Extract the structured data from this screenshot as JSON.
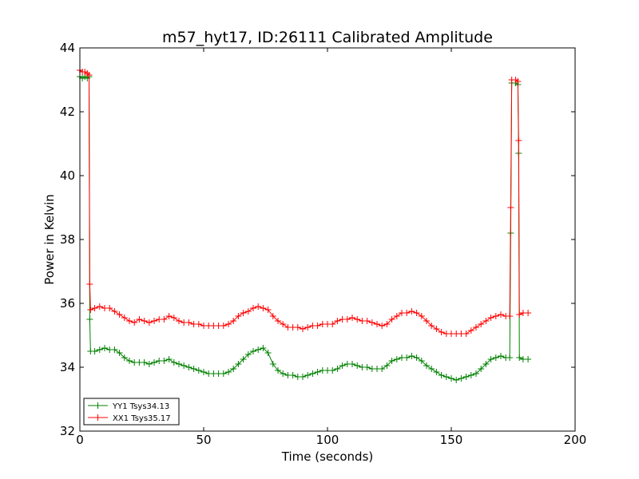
{
  "chart_data": {
    "type": "line",
    "title": "m57_hyt17, ID:26111 Calibrated Amplitude",
    "xlabel": "Time (seconds)",
    "ylabel": "Power in Kelvin",
    "xlim": [
      0,
      200
    ],
    "ylim": [
      32,
      44
    ],
    "xticks": [
      0,
      50,
      100,
      150,
      200
    ],
    "yticks": [
      32,
      34,
      36,
      38,
      40,
      42,
      44
    ],
    "grid": false,
    "legend_position": "lower-left",
    "marker": "+",
    "series": [
      {
        "name": "YY1 Tsys34.13",
        "color": "#008000",
        "points": [
          [
            0,
            43.1
          ],
          [
            1,
            43.05
          ],
          [
            2,
            43.1
          ],
          [
            3,
            43.05
          ],
          [
            3.7,
            43.1
          ],
          [
            4,
            35.5
          ],
          [
            4.3,
            34.5
          ],
          [
            6,
            34.5
          ],
          [
            8,
            34.55
          ],
          [
            10,
            34.6
          ],
          [
            12,
            34.55
          ],
          [
            14,
            34.55
          ],
          [
            16,
            34.45
          ],
          [
            18,
            34.3
          ],
          [
            20,
            34.2
          ],
          [
            22,
            34.15
          ],
          [
            24,
            34.15
          ],
          [
            26,
            34.15
          ],
          [
            28,
            34.1
          ],
          [
            30,
            34.15
          ],
          [
            32,
            34.2
          ],
          [
            34,
            34.2
          ],
          [
            36,
            34.25
          ],
          [
            38,
            34.15
          ],
          [
            40,
            34.1
          ],
          [
            42,
            34.05
          ],
          [
            44,
            34.0
          ],
          [
            46,
            33.95
          ],
          [
            48,
            33.9
          ],
          [
            50,
            33.85
          ],
          [
            52,
            33.8
          ],
          [
            54,
            33.8
          ],
          [
            56,
            33.8
          ],
          [
            58,
            33.8
          ],
          [
            60,
            33.85
          ],
          [
            62,
            33.95
          ],
          [
            64,
            34.1
          ],
          [
            66,
            34.25
          ],
          [
            68,
            34.4
          ],
          [
            70,
            34.5
          ],
          [
            72,
            34.55
          ],
          [
            74,
            34.6
          ],
          [
            76,
            34.45
          ],
          [
            78,
            34.1
          ],
          [
            80,
            33.9
          ],
          [
            82,
            33.8
          ],
          [
            84,
            33.75
          ],
          [
            86,
            33.75
          ],
          [
            88,
            33.7
          ],
          [
            90,
            33.7
          ],
          [
            92,
            33.75
          ],
          [
            94,
            33.8
          ],
          [
            96,
            33.85
          ],
          [
            98,
            33.9
          ],
          [
            100,
            33.9
          ],
          [
            102,
            33.9
          ],
          [
            104,
            33.95
          ],
          [
            106,
            34.05
          ],
          [
            108,
            34.1
          ],
          [
            110,
            34.1
          ],
          [
            112,
            34.05
          ],
          [
            114,
            34.0
          ],
          [
            116,
            34.0
          ],
          [
            118,
            33.95
          ],
          [
            120,
            33.95
          ],
          [
            122,
            33.95
          ],
          [
            124,
            34.05
          ],
          [
            126,
            34.2
          ],
          [
            128,
            34.25
          ],
          [
            130,
            34.3
          ],
          [
            132,
            34.3
          ],
          [
            134,
            34.35
          ],
          [
            136,
            34.3
          ],
          [
            138,
            34.2
          ],
          [
            140,
            34.05
          ],
          [
            142,
            33.95
          ],
          [
            144,
            33.85
          ],
          [
            146,
            33.75
          ],
          [
            148,
            33.7
          ],
          [
            150,
            33.65
          ],
          [
            152,
            33.6
          ],
          [
            154,
            33.65
          ],
          [
            156,
            33.7
          ],
          [
            158,
            33.75
          ],
          [
            160,
            33.8
          ],
          [
            162,
            33.95
          ],
          [
            164,
            34.1
          ],
          [
            166,
            34.25
          ],
          [
            168,
            34.3
          ],
          [
            170,
            34.35
          ],
          [
            172,
            34.3
          ],
          [
            173.6,
            34.3
          ],
          [
            174,
            38.2
          ],
          [
            174.4,
            42.9
          ],
          [
            176,
            42.9
          ],
          [
            176.9,
            42.85
          ],
          [
            177.2,
            40.7
          ],
          [
            177.5,
            34.3
          ],
          [
            179,
            34.25
          ],
          [
            181,
            34.25
          ]
        ]
      },
      {
        "name": "XX1 Tsys35.17",
        "color": "#ff0000",
        "points": [
          [
            0,
            43.3
          ],
          [
            1,
            43.25
          ],
          [
            2,
            43.25
          ],
          [
            3,
            43.2
          ],
          [
            3.7,
            43.15
          ],
          [
            4,
            36.6
          ],
          [
            4.3,
            35.8
          ],
          [
            6,
            35.85
          ],
          [
            8,
            35.9
          ],
          [
            10,
            35.85
          ],
          [
            12,
            35.85
          ],
          [
            14,
            35.75
          ],
          [
            16,
            35.65
          ],
          [
            18,
            35.55
          ],
          [
            20,
            35.45
          ],
          [
            22,
            35.4
          ],
          [
            24,
            35.5
          ],
          [
            26,
            35.45
          ],
          [
            28,
            35.4
          ],
          [
            30,
            35.45
          ],
          [
            32,
            35.5
          ],
          [
            34,
            35.5
          ],
          [
            36,
            35.6
          ],
          [
            38,
            35.55
          ],
          [
            40,
            35.45
          ],
          [
            42,
            35.4
          ],
          [
            44,
            35.4
          ],
          [
            46,
            35.35
          ],
          [
            48,
            35.35
          ],
          [
            50,
            35.3
          ],
          [
            52,
            35.3
          ],
          [
            54,
            35.3
          ],
          [
            56,
            35.3
          ],
          [
            58,
            35.3
          ],
          [
            60,
            35.35
          ],
          [
            62,
            35.45
          ],
          [
            64,
            35.6
          ],
          [
            66,
            35.7
          ],
          [
            68,
            35.75
          ],
          [
            70,
            35.85
          ],
          [
            72,
            35.9
          ],
          [
            74,
            35.85
          ],
          [
            76,
            35.8
          ],
          [
            78,
            35.6
          ],
          [
            80,
            35.45
          ],
          [
            82,
            35.35
          ],
          [
            84,
            35.25
          ],
          [
            86,
            35.25
          ],
          [
            88,
            35.25
          ],
          [
            90,
            35.2
          ],
          [
            92,
            35.25
          ],
          [
            94,
            35.3
          ],
          [
            96,
            35.3
          ],
          [
            98,
            35.35
          ],
          [
            100,
            35.35
          ],
          [
            102,
            35.35
          ],
          [
            104,
            35.45
          ],
          [
            106,
            35.5
          ],
          [
            108,
            35.5
          ],
          [
            110,
            35.55
          ],
          [
            112,
            35.5
          ],
          [
            114,
            35.45
          ],
          [
            116,
            35.45
          ],
          [
            118,
            35.4
          ],
          [
            120,
            35.35
          ],
          [
            122,
            35.3
          ],
          [
            124,
            35.35
          ],
          [
            126,
            35.5
          ],
          [
            128,
            35.6
          ],
          [
            130,
            35.7
          ],
          [
            132,
            35.7
          ],
          [
            134,
            35.75
          ],
          [
            136,
            35.7
          ],
          [
            138,
            35.6
          ],
          [
            140,
            35.45
          ],
          [
            142,
            35.3
          ],
          [
            144,
            35.2
          ],
          [
            146,
            35.1
          ],
          [
            148,
            35.05
          ],
          [
            150,
            35.05
          ],
          [
            152,
            35.05
          ],
          [
            154,
            35.05
          ],
          [
            156,
            35.05
          ],
          [
            158,
            35.15
          ],
          [
            160,
            35.25
          ],
          [
            162,
            35.35
          ],
          [
            164,
            35.45
          ],
          [
            166,
            35.55
          ],
          [
            168,
            35.6
          ],
          [
            170,
            35.65
          ],
          [
            172,
            35.6
          ],
          [
            173.6,
            35.6
          ],
          [
            174,
            39.0
          ],
          [
            174.4,
            43.0
          ],
          [
            176,
            43.0
          ],
          [
            176.9,
            42.95
          ],
          [
            177.2,
            41.1
          ],
          [
            177.5,
            35.65
          ],
          [
            179,
            35.7
          ],
          [
            181,
            35.7
          ]
        ]
      }
    ]
  }
}
